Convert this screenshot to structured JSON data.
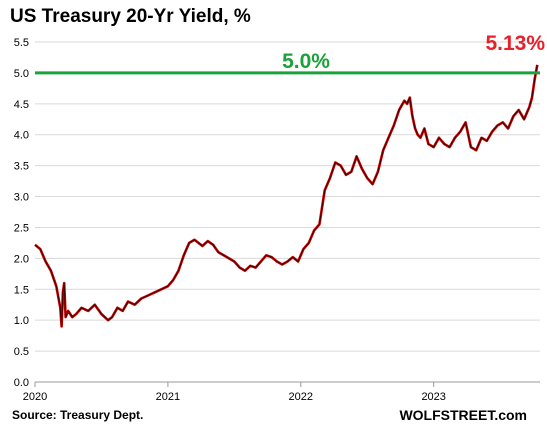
{
  "title": "US Treasury 20-Yr Yield, %",
  "source": "Source: Treasury Dept.",
  "brand": "WOLFSTREET.com",
  "colors": {
    "line": "#cc0000",
    "line_core": "#330000",
    "reference": "#1aa33a",
    "last_label": "#e8202a"
  },
  "chart_data": {
    "type": "line",
    "title": "US Treasury 20-Yr Yield, %",
    "xlabel": "",
    "ylabel": "",
    "ylim": [
      0,
      5.5
    ],
    "yticks": [
      "0.0",
      "0.5",
      "1.0",
      "1.5",
      "2.0",
      "2.5",
      "3.0",
      "3.5",
      "4.0",
      "4.5",
      "5.0",
      "5.5"
    ],
    "xlim": [
      2020.0,
      2023.8
    ],
    "xticks": [
      {
        "label": "2020",
        "x": 2020.0
      },
      {
        "label": "2021",
        "x": 2021.0
      },
      {
        "label": "2022",
        "x": 2022.0
      },
      {
        "label": "2023",
        "x": 2023.0
      }
    ],
    "grid": "horizontal",
    "reference_line": {
      "value": 5.0,
      "label": "5.0%"
    },
    "last_value_label": "5.13%",
    "series": [
      {
        "x": [
          2020.0,
          2020.04,
          2020.08,
          2020.12,
          2020.16,
          2020.19,
          2020.2,
          2020.21,
          2020.22,
          2020.23,
          2020.25,
          2020.28,
          2020.31,
          2020.35,
          2020.4,
          2020.45,
          2020.5,
          2020.55,
          2020.58,
          2020.62,
          2020.66,
          2020.7,
          2020.75,
          2020.8,
          2020.85,
          2020.9,
          2020.95,
          2021.0,
          2021.04,
          2021.08,
          2021.12,
          2021.16,
          2021.2,
          2021.23,
          2021.26,
          2021.3,
          2021.34,
          2021.38,
          2021.42,
          2021.46,
          2021.5,
          2021.54,
          2021.58,
          2021.62,
          2021.66,
          2021.7,
          2021.74,
          2021.78,
          2021.82,
          2021.86,
          2021.9,
          2021.94,
          2021.98,
          2022.02,
          2022.06,
          2022.1,
          2022.14,
          2022.18,
          2022.22,
          2022.26,
          2022.3,
          2022.34,
          2022.38,
          2022.42,
          2022.46,
          2022.5,
          2022.54,
          2022.58,
          2022.62,
          2022.66,
          2022.7,
          2022.74,
          2022.78,
          2022.8,
          2022.82,
          2022.84,
          2022.86,
          2022.88,
          2022.9,
          2022.93,
          2022.96,
          2023.0,
          2023.04,
          2023.08,
          2023.12,
          2023.16,
          2023.2,
          2023.24,
          2023.28,
          2023.32,
          2023.36,
          2023.4,
          2023.44,
          2023.48,
          2023.52,
          2023.56,
          2023.6,
          2023.64,
          2023.68,
          2023.72,
          2023.74,
          2023.76,
          2023.78
        ],
        "values": [
          2.22,
          2.15,
          1.95,
          1.8,
          1.55,
          1.2,
          0.9,
          1.45,
          1.6,
          1.05,
          1.15,
          1.05,
          1.1,
          1.2,
          1.15,
          1.25,
          1.1,
          1.0,
          1.05,
          1.2,
          1.15,
          1.3,
          1.25,
          1.35,
          1.4,
          1.45,
          1.5,
          1.55,
          1.65,
          1.8,
          2.05,
          2.25,
          2.3,
          2.25,
          2.2,
          2.28,
          2.22,
          2.1,
          2.05,
          2.0,
          1.95,
          1.85,
          1.8,
          1.88,
          1.85,
          1.95,
          2.05,
          2.02,
          1.95,
          1.9,
          1.95,
          2.02,
          1.95,
          2.15,
          2.25,
          2.45,
          2.55,
          3.1,
          3.3,
          3.55,
          3.5,
          3.35,
          3.4,
          3.65,
          3.45,
          3.3,
          3.2,
          3.4,
          3.75,
          3.95,
          4.15,
          4.4,
          4.55,
          4.5,
          4.6,
          4.3,
          4.1,
          4.0,
          3.95,
          4.1,
          3.85,
          3.8,
          3.95,
          3.85,
          3.8,
          3.95,
          4.05,
          4.2,
          3.8,
          3.75,
          3.95,
          3.9,
          4.05,
          4.15,
          4.2,
          4.1,
          4.3,
          4.4,
          4.25,
          4.45,
          4.6,
          4.9,
          5.13
        ]
      }
    ]
  }
}
